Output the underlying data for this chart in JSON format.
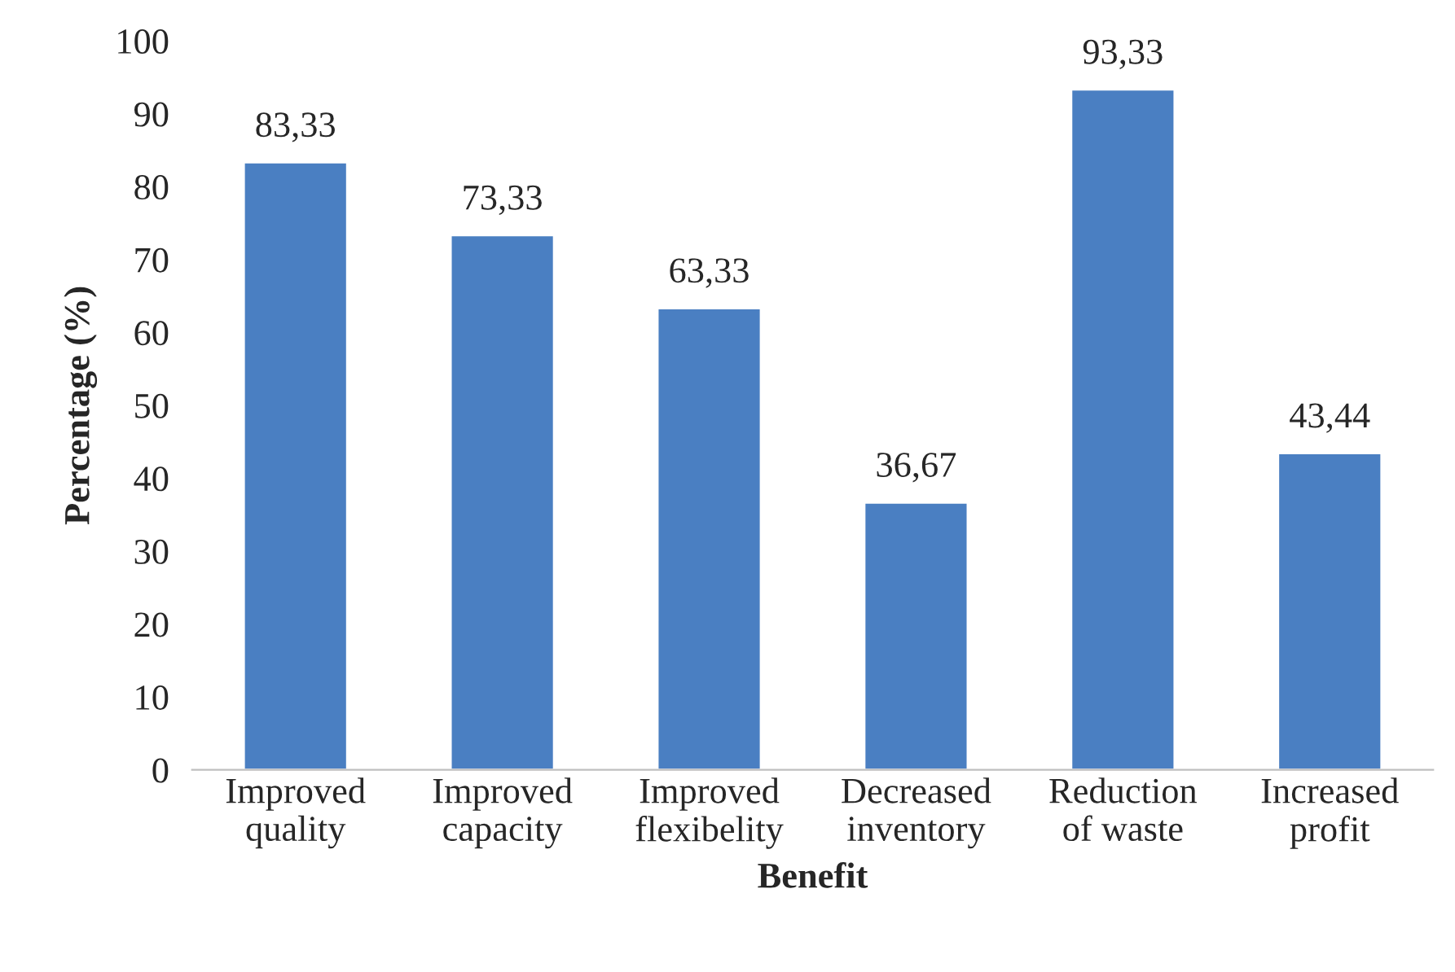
{
  "chart_data": {
    "type": "bar",
    "xlabel": "Benefit",
    "ylabel": "Percentage (%)",
    "categories": [
      "Improved quality",
      "Improved capacity",
      "Improved flexibelity",
      "Decreased inventory",
      "Reduction of waste",
      "Increased profit"
    ],
    "values": [
      83.33,
      73.33,
      63.33,
      36.67,
      93.33,
      43.44
    ],
    "value_labels": [
      "83,33",
      "73,33",
      "63,33",
      "36,67",
      "93,33",
      "43,44"
    ],
    "color": "#4a7fc2",
    "ylim": [
      0,
      100
    ],
    "yticks": [
      0,
      10,
      20,
      30,
      40,
      50,
      60,
      70,
      80,
      90,
      100
    ],
    "grid": false,
    "legend": false
  }
}
